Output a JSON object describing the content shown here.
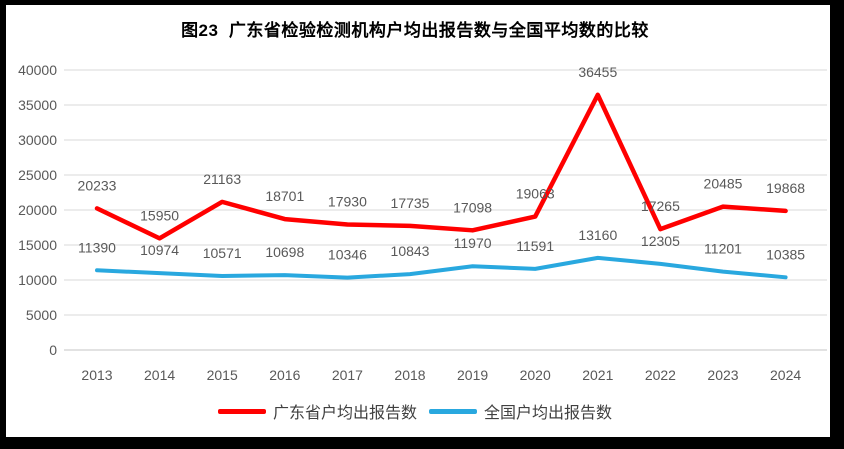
{
  "chart_data": {
    "type": "line",
    "title": "图23  广东省检验检测机构户均出报告数与全国平均数的比较",
    "categories": [
      "2013",
      "2014",
      "2015",
      "2016",
      "2017",
      "2018",
      "2019",
      "2020",
      "2021",
      "2022",
      "2023",
      "2024"
    ],
    "series": [
      {
        "name": "广东省户均出报告数",
        "color": "#FF0000",
        "values": [
          20233,
          15950,
          21163,
          18701,
          17930,
          17735,
          17098,
          19063,
          36455,
          17265,
          20485,
          19868
        ]
      },
      {
        "name": "全国户均出报告数",
        "color": "#29A8DF",
        "values": [
          11390,
          10974,
          10571,
          10698,
          10346,
          10843,
          11970,
          11591,
          13160,
          12305,
          11201,
          10385
        ]
      }
    ],
    "ylim": [
      0,
      40000
    ],
    "ytick_step": 5000,
    "yticks": [
      "0",
      "5000",
      "10000",
      "15000",
      "20000",
      "25000",
      "30000",
      "35000",
      "40000"
    ],
    "grid": true,
    "data_labels": true,
    "legend_position": "bottom"
  },
  "colors": {
    "frame_border": "#000000",
    "background": "#FFFFFF",
    "gridline": "#D9D9D9",
    "zero_line": "#C6C6C6",
    "axis_text": "#595959",
    "data_label_text": "#595959",
    "legend_text": "#404040",
    "title_text": "#000000"
  }
}
